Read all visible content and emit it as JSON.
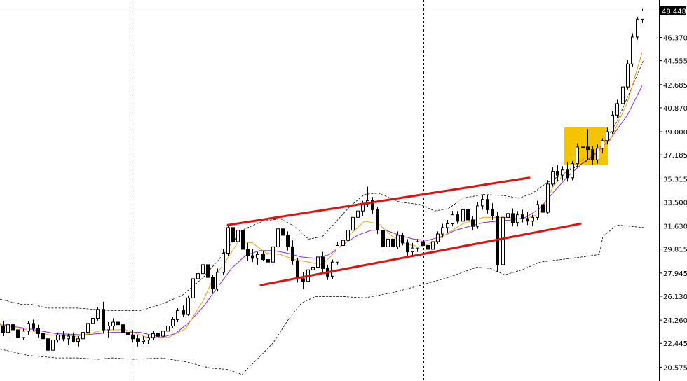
{
  "chart_data": {
    "type": "candlestick",
    "ylim": [
      19.5,
      49.3
    ],
    "current_price": "48.448",
    "current_price_value": 48.448,
    "y_ticks": [
      {
        "label": "48.448",
        "value": 48.448
      },
      {
        "label": "46.370",
        "value": 46.37
      },
      {
        "label": "44.555",
        "value": 44.555
      },
      {
        "label": "42.685",
        "value": 42.685
      },
      {
        "label": "40.870",
        "value": 40.87
      },
      {
        "label": "39.000",
        "value": 39.0
      },
      {
        "label": "37.185",
        "value": 37.185
      },
      {
        "label": "35.315",
        "value": 35.315
      },
      {
        "label": "33.500",
        "value": 33.5
      },
      {
        "label": "31.630",
        "value": 31.63
      },
      {
        "label": "29.815",
        "value": 29.815
      },
      {
        "label": "27.945",
        "value": 27.945
      },
      {
        "label": "26.130",
        "value": 26.13
      },
      {
        "label": "24.260",
        "value": 24.26
      },
      {
        "label": "22.445",
        "value": 22.445
      },
      {
        "label": "20.575",
        "value": 20.575
      }
    ],
    "candles": [
      [
        23.8,
        24.2,
        23.0,
        23.3
      ],
      [
        23.3,
        24.1,
        22.9,
        23.9
      ],
      [
        23.9,
        24.0,
        23.2,
        23.5
      ],
      [
        23.5,
        23.8,
        22.6,
        22.9
      ],
      [
        22.9,
        23.6,
        22.7,
        23.4
      ],
      [
        23.4,
        24.2,
        23.1,
        24.0
      ],
      [
        24.0,
        24.3,
        23.4,
        23.6
      ],
      [
        23.6,
        23.9,
        22.9,
        23.2
      ],
      [
        23.2,
        23.5,
        22.5,
        22.8
      ],
      [
        22.8,
        23.1,
        21.1,
        21.9
      ],
      [
        21.9,
        22.9,
        21.6,
        22.7
      ],
      [
        22.7,
        23.3,
        22.5,
        23.1
      ],
      [
        23.1,
        23.4,
        22.6,
        22.8
      ],
      [
        22.8,
        23.2,
        22.3,
        23.0
      ],
      [
        23.0,
        23.3,
        22.5,
        22.6
      ],
      [
        22.6,
        23.0,
        22.2,
        22.8
      ],
      [
        22.8,
        23.5,
        22.6,
        23.3
      ],
      [
        23.3,
        24.3,
        23.1,
        24.0
      ],
      [
        24.0,
        24.7,
        23.7,
        24.4
      ],
      [
        24.4,
        25.3,
        24.2,
        25.1
      ],
      [
        25.1,
        25.7,
        23.2,
        23.5
      ],
      [
        23.5,
        24.1,
        22.9,
        23.8
      ],
      [
        23.8,
        24.4,
        23.5,
        24.1
      ],
      [
        24.1,
        24.6,
        23.6,
        23.9
      ],
      [
        23.9,
        24.2,
        23.1,
        23.3
      ],
      [
        23.3,
        23.8,
        22.9,
        23.1
      ],
      [
        23.1,
        23.5,
        22.5,
        22.8
      ],
      [
        22.8,
        23.1,
        22.2,
        22.6
      ],
      [
        22.6,
        23.0,
        22.4,
        22.7
      ],
      [
        22.7,
        23.1,
        22.4,
        22.9
      ],
      [
        22.9,
        23.4,
        22.7,
        23.2
      ],
      [
        23.2,
        23.6,
        22.8,
        23.0
      ],
      [
        23.0,
        23.5,
        22.9,
        23.4
      ],
      [
        23.4,
        24.0,
        23.2,
        23.8
      ],
      [
        23.8,
        24.5,
        23.6,
        24.3
      ],
      [
        24.3,
        25.2,
        24.1,
        25.0
      ],
      [
        25.0,
        25.4,
        24.5,
        24.7
      ],
      [
        24.7,
        26.2,
        24.6,
        26.0
      ],
      [
        26.0,
        27.7,
        25.8,
        27.5
      ],
      [
        27.5,
        28.5,
        27.1,
        27.9
      ],
      [
        27.9,
        28.9,
        27.6,
        28.6
      ],
      [
        28.6,
        28.8,
        27.3,
        27.6
      ],
      [
        27.6,
        27.8,
        26.4,
        26.7
      ],
      [
        26.7,
        28.3,
        26.5,
        28.0
      ],
      [
        28.0,
        29.8,
        27.8,
        29.5
      ],
      [
        29.5,
        31.8,
        29.3,
        31.5
      ],
      [
        31.5,
        32.0,
        30.0,
        30.4
      ],
      [
        30.4,
        31.8,
        30.1,
        31.3
      ],
      [
        31.3,
        31.6,
        29.5,
        29.8
      ],
      [
        29.8,
        30.3,
        28.9,
        29.3
      ],
      [
        29.3,
        29.8,
        28.8,
        29.1
      ],
      [
        29.1,
        29.6,
        28.6,
        29.4
      ],
      [
        29.4,
        29.7,
        28.9,
        29.0
      ],
      [
        29.0,
        29.3,
        28.5,
        28.8
      ],
      [
        28.8,
        30.2,
        28.6,
        30.0
      ],
      [
        30.0,
        31.6,
        29.8,
        31.4
      ],
      [
        31.4,
        31.7,
        30.5,
        30.9
      ],
      [
        30.9,
        31.2,
        29.7,
        30.0
      ],
      [
        30.0,
        30.5,
        28.6,
        28.9
      ],
      [
        28.9,
        29.1,
        27.2,
        27.5
      ],
      [
        27.5,
        28.0,
        26.7,
        27.3
      ],
      [
        27.3,
        28.4,
        27.1,
        28.2
      ],
      [
        28.2,
        28.7,
        27.8,
        28.4
      ],
      [
        28.4,
        29.4,
        28.2,
        29.2
      ],
      [
        29.2,
        29.6,
        28.0,
        28.3
      ],
      [
        28.3,
        28.6,
        27.4,
        27.7
      ],
      [
        27.7,
        29.0,
        27.5,
        28.8
      ],
      [
        28.8,
        30.4,
        28.6,
        30.1
      ],
      [
        30.1,
        30.8,
        29.6,
        30.5
      ],
      [
        30.5,
        31.6,
        30.2,
        31.3
      ],
      [
        31.3,
        32.6,
        31.1,
        32.3
      ],
      [
        32.3,
        33.1,
        31.8,
        32.8
      ],
      [
        32.8,
        33.6,
        32.4,
        33.3
      ],
      [
        33.3,
        34.7,
        33.1,
        33.6
      ],
      [
        33.6,
        33.9,
        32.6,
        32.9
      ],
      [
        32.9,
        33.1,
        31.0,
        31.3
      ],
      [
        31.3,
        31.6,
        29.6,
        30.0
      ],
      [
        30.0,
        31.0,
        29.6,
        30.6
      ],
      [
        30.6,
        31.2,
        29.8,
        30.0
      ],
      [
        30.0,
        31.2,
        29.8,
        30.9
      ],
      [
        30.9,
        31.1,
        30.1,
        30.3
      ],
      [
        30.3,
        30.6,
        29.3,
        29.6
      ],
      [
        29.6,
        30.3,
        29.2,
        29.9
      ],
      [
        29.9,
        30.6,
        29.6,
        30.4
      ],
      [
        30.4,
        30.9,
        29.9,
        30.1
      ],
      [
        30.1,
        30.5,
        29.6,
        29.8
      ],
      [
        29.8,
        30.6,
        29.6,
        30.4
      ],
      [
        30.4,
        31.2,
        30.2,
        31.0
      ],
      [
        31.0,
        31.8,
        30.7,
        31.5
      ],
      [
        31.5,
        32.1,
        31.1,
        31.8
      ],
      [
        31.8,
        32.8,
        31.6,
        32.5
      ],
      [
        32.5,
        32.8,
        31.8,
        32.0
      ],
      [
        32.0,
        33.2,
        31.9,
        32.9
      ],
      [
        32.9,
        33.4,
        31.8,
        32.1
      ],
      [
        32.1,
        32.4,
        31.3,
        31.6
      ],
      [
        31.6,
        33.5,
        31.4,
        33.2
      ],
      [
        33.2,
        34.1,
        32.9,
        33.7
      ],
      [
        33.7,
        34.1,
        32.6,
        32.9
      ],
      [
        32.9,
        33.4,
        32.1,
        32.4
      ],
      [
        32.4,
        32.7,
        28.0,
        28.6
      ],
      [
        28.6,
        32.5,
        28.3,
        32.3
      ],
      [
        32.3,
        33.0,
        31.8,
        32.6
      ],
      [
        32.6,
        33.0,
        31.6,
        31.9
      ],
      [
        31.9,
        32.8,
        31.6,
        32.5
      ],
      [
        32.5,
        32.9,
        31.9,
        32.2
      ],
      [
        32.2,
        32.7,
        31.7,
        32.0
      ],
      [
        32.0,
        32.5,
        31.6,
        32.3
      ],
      [
        32.3,
        33.6,
        32.1,
        33.3
      ],
      [
        33.3,
        33.8,
        32.4,
        32.7
      ],
      [
        32.7,
        35.2,
        32.6,
        34.9
      ],
      [
        34.9,
        36.2,
        34.7,
        35.9
      ],
      [
        35.9,
        36.4,
        35.1,
        35.6
      ],
      [
        35.6,
        36.3,
        35.2,
        36.0
      ],
      [
        36.0,
        36.6,
        35.1,
        35.4
      ],
      [
        35.4,
        36.7,
        35.2,
        36.5
      ],
      [
        36.5,
        38.1,
        36.2,
        37.8
      ],
      [
        37.8,
        39.0,
        37.1,
        37.8
      ],
      [
        37.8,
        39.2,
        36.8,
        37.6
      ],
      [
        37.6,
        37.9,
        36.4,
        36.8
      ],
      [
        36.8,
        38.0,
        36.5,
        37.7
      ],
      [
        37.7,
        38.5,
        37.3,
        38.3
      ],
      [
        38.3,
        39.3,
        38.0,
        39.0
      ],
      [
        39.0,
        40.6,
        38.8,
        40.3
      ],
      [
        40.3,
        41.5,
        40.1,
        41.2
      ],
      [
        41.2,
        42.8,
        41.0,
        42.5
      ],
      [
        42.5,
        44.6,
        42.3,
        44.3
      ],
      [
        44.3,
        46.7,
        44.1,
        46.4
      ],
      [
        46.4,
        48.0,
        46.2,
        47.8
      ],
      [
        47.8,
        48.6,
        47.5,
        48.45
      ]
    ],
    "bb_upper": [
      [
        0,
        25.9
      ],
      [
        30,
        25.5
      ],
      [
        45,
        25.5
      ],
      [
        68,
        25.2
      ],
      [
        110,
        25.2
      ],
      [
        160,
        25.0
      ],
      [
        200,
        25.0
      ],
      [
        230,
        25.5
      ],
      [
        260,
        26.2
      ],
      [
        290,
        27.6
      ],
      [
        320,
        29.5
      ],
      [
        345,
        31.3
      ],
      [
        375,
        32.0
      ],
      [
        400,
        32.2
      ],
      [
        420,
        31.6
      ],
      [
        440,
        30.6
      ],
      [
        460,
        30.8
      ],
      [
        480,
        32.0
      ],
      [
        500,
        33.2
      ],
      [
        520,
        34.1
      ],
      [
        540,
        34.2
      ],
      [
        570,
        33.5
      ],
      [
        600,
        33.3
      ],
      [
        620,
        32.8
      ],
      [
        640,
        33.0
      ],
      [
        660,
        33.8
      ],
      [
        690,
        34.1
      ],
      [
        720,
        34.0
      ],
      [
        740,
        33.8
      ],
      [
        760,
        34.2
      ],
      [
        780,
        35.0
      ],
      [
        800,
        35.6
      ],
      [
        820,
        36.2
      ],
      [
        840,
        36.8
      ],
      [
        860,
        38.0
      ],
      [
        880,
        39.8
      ],
      [
        900,
        42.3
      ],
      [
        918,
        44.6
      ]
    ],
    "bb_lower": [
      [
        0,
        22.0
      ],
      [
        40,
        21.5
      ],
      [
        80,
        21.3
      ],
      [
        110,
        21.3
      ],
      [
        140,
        21.2
      ],
      [
        160,
        21.3
      ],
      [
        190,
        21.2
      ],
      [
        230,
        21.3
      ],
      [
        265,
        21.0
      ],
      [
        300,
        20.5
      ],
      [
        325,
        20.4
      ],
      [
        345,
        20.0
      ],
      [
        365,
        21.1
      ],
      [
        390,
        22.5
      ],
      [
        410,
        24.2
      ],
      [
        430,
        25.6
      ],
      [
        450,
        26.1
      ],
      [
        490,
        26.1
      ],
      [
        520,
        26.0
      ],
      [
        560,
        26.4
      ],
      [
        600,
        27.0
      ],
      [
        640,
        27.6
      ],
      [
        680,
        28.4
      ],
      [
        700,
        28.3
      ],
      [
        720,
        27.8
      ],
      [
        745,
        28.2
      ],
      [
        770,
        28.8
      ],
      [
        800,
        29.0
      ],
      [
        830,
        29.2
      ],
      [
        855,
        29.4
      ],
      [
        860,
        30.8
      ],
      [
        880,
        31.7
      ],
      [
        900,
        31.6
      ],
      [
        918,
        31.5
      ]
    ],
    "ma_fast": [
      [
        0,
        24.0
      ],
      [
        30,
        23.6
      ],
      [
        70,
        23.1
      ],
      [
        110,
        23.0
      ],
      [
        150,
        23.5
      ],
      [
        180,
        23.5
      ],
      [
        210,
        22.9
      ],
      [
        240,
        22.9
      ],
      [
        265,
        23.6
      ],
      [
        290,
        25.8
      ],
      [
        305,
        27.6
      ],
      [
        320,
        28.7
      ],
      [
        340,
        30.4
      ],
      [
        360,
        30.3
      ],
      [
        380,
        29.5
      ],
      [
        400,
        29.4
      ],
      [
        420,
        29.0
      ],
      [
        440,
        28.8
      ],
      [
        460,
        28.6
      ],
      [
        480,
        29.7
      ],
      [
        500,
        31.0
      ],
      [
        520,
        32.0
      ],
      [
        540,
        31.8
      ],
      [
        560,
        30.8
      ],
      [
        580,
        30.2
      ],
      [
        600,
        30.0
      ],
      [
        620,
        30.4
      ],
      [
        640,
        31.1
      ],
      [
        660,
        31.8
      ],
      [
        690,
        32.3
      ],
      [
        720,
        32.3
      ],
      [
        750,
        32.2
      ],
      [
        770,
        32.6
      ],
      [
        790,
        34.8
      ],
      [
        810,
        36.0
      ],
      [
        830,
        36.8
      ],
      [
        850,
        37.4
      ],
      [
        870,
        38.3
      ],
      [
        895,
        41.3
      ],
      [
        916,
        45.2
      ]
    ],
    "ma_slow": [
      [
        0,
        23.9
      ],
      [
        40,
        23.6
      ],
      [
        80,
        23.2
      ],
      [
        120,
        23.1
      ],
      [
        160,
        23.3
      ],
      [
        200,
        23.3
      ],
      [
        230,
        22.9
      ],
      [
        250,
        23.2
      ],
      [
        270,
        24.1
      ],
      [
        290,
        25.3
      ],
      [
        310,
        26.8
      ],
      [
        330,
        28.3
      ],
      [
        350,
        29.3
      ],
      [
        370,
        29.7
      ],
      [
        390,
        29.7
      ],
      [
        410,
        29.5
      ],
      [
        430,
        29.2
      ],
      [
        450,
        29.1
      ],
      [
        470,
        29.4
      ],
      [
        490,
        30.2
      ],
      [
        510,
        30.9
      ],
      [
        530,
        31.3
      ],
      [
        550,
        31.3
      ],
      [
        570,
        30.9
      ],
      [
        590,
        30.6
      ],
      [
        610,
        30.5
      ],
      [
        630,
        30.8
      ],
      [
        650,
        31.3
      ],
      [
        670,
        31.6
      ],
      [
        690,
        31.9
      ],
      [
        710,
        32.0
      ],
      [
        730,
        32.1
      ],
      [
        750,
        32.3
      ],
      [
        770,
        33.0
      ],
      [
        790,
        34.3
      ],
      [
        810,
        35.5
      ],
      [
        830,
        36.5
      ],
      [
        850,
        37.3
      ],
      [
        870,
        38.4
      ],
      [
        895,
        40.3
      ],
      [
        916,
        42.6
      ]
    ],
    "channel_upper": [
      [
        325,
        31.7
      ],
      [
        755,
        35.4
      ]
    ],
    "channel_lower": [
      [
        372,
        27.0
      ],
      [
        828,
        31.8
      ]
    ],
    "highlight_zone": {
      "from": [
        805,
        39.35
      ],
      "to": [
        868,
        36.4
      ]
    },
    "vertical_separators": [
      188,
      604,
      940
    ]
  }
}
